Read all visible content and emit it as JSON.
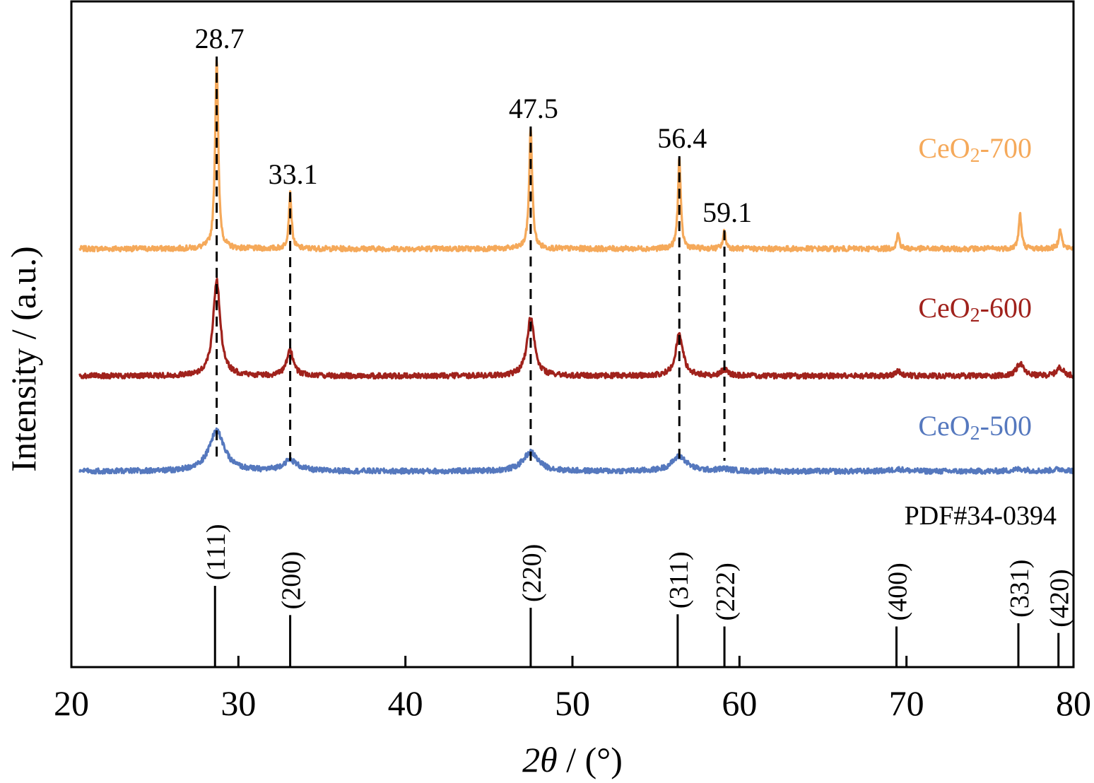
{
  "chart_data": {
    "type": "line",
    "xlabel_prefix": "2",
    "xlabel_symbol": "θ",
    "xlabel_suffix": " / (°)",
    "ylabel": "Intensity / (a.u.)",
    "xlim": [
      20,
      80
    ],
    "x_ticks": [
      20,
      30,
      40,
      50,
      60,
      70,
      80
    ],
    "y_ticks": [],
    "grid": false,
    "series": [
      {
        "name_main": "CeO",
        "name_sub": "2",
        "name_tail": "-700",
        "color": "#F5A95A",
        "baseline": 0.6,
        "peaks": [
          {
            "x": 28.7,
            "height": 0.9,
            "width": 0.11
          },
          {
            "x": 33.1,
            "height": 0.26,
            "width": 0.1
          },
          {
            "x": 47.5,
            "height": 0.57,
            "width": 0.11
          },
          {
            "x": 56.4,
            "height": 0.43,
            "width": 0.1
          },
          {
            "x": 59.1,
            "height": 0.08,
            "width": 0.1
          },
          {
            "x": 69.5,
            "height": 0.07,
            "width": 0.1
          },
          {
            "x": 76.8,
            "height": 0.16,
            "width": 0.1
          },
          {
            "x": 79.2,
            "height": 0.1,
            "width": 0.1
          }
        ]
      },
      {
        "name_main": "CeO",
        "name_sub": "2",
        "name_tail": "-600",
        "color": "#A0221C",
        "baseline": 0.0,
        "peaks": [
          {
            "x": 28.7,
            "height": 0.45,
            "width": 0.26
          },
          {
            "x": 33.1,
            "height": 0.12,
            "width": 0.24
          },
          {
            "x": 47.5,
            "height": 0.28,
            "width": 0.26
          },
          {
            "x": 56.4,
            "height": 0.2,
            "width": 0.26
          },
          {
            "x": 59.1,
            "height": 0.03,
            "width": 0.24
          },
          {
            "x": 69.5,
            "height": 0.02,
            "width": 0.24
          },
          {
            "x": 76.8,
            "height": 0.06,
            "width": 0.24
          },
          {
            "x": 79.2,
            "height": 0.04,
            "width": 0.24
          }
        ]
      },
      {
        "name_main": "CeO",
        "name_sub": "2",
        "name_tail": "-500",
        "color": "#5578BE",
        "baseline": -0.45,
        "peaks": [
          {
            "x": 28.7,
            "height": 0.19,
            "width": 0.55
          },
          {
            "x": 33.1,
            "height": 0.05,
            "width": 0.55
          },
          {
            "x": 47.5,
            "height": 0.09,
            "width": 0.55
          },
          {
            "x": 56.4,
            "height": 0.07,
            "width": 0.55
          },
          {
            "x": 59.1,
            "height": 0.01,
            "width": 0.5
          },
          {
            "x": 69.5,
            "height": 0.01,
            "width": 0.5
          },
          {
            "x": 76.8,
            "height": 0.01,
            "width": 0.5
          },
          {
            "x": 79.2,
            "height": 0.01,
            "width": 0.5
          }
        ]
      }
    ],
    "peak_annotations": [
      {
        "x": 28.7,
        "label": "28.7"
      },
      {
        "x": 33.1,
        "label": "33.1"
      },
      {
        "x": 47.5,
        "label": "47.5"
      },
      {
        "x": 56.4,
        "label": "56.4"
      },
      {
        "x": 59.1,
        "label": "59.1"
      }
    ],
    "reference": {
      "label": "PDF#34-0394",
      "lines": [
        {
          "x": 28.6,
          "hkl": "(111)",
          "intensity": 1.0
        },
        {
          "x": 33.1,
          "hkl": "(200)",
          "intensity": 0.64
        },
        {
          "x": 47.5,
          "hkl": "(220)",
          "intensity": 0.73
        },
        {
          "x": 56.3,
          "hkl": "(311)",
          "intensity": 0.65
        },
        {
          "x": 59.1,
          "hkl": "(222)",
          "intensity": 0.5
        },
        {
          "x": 69.4,
          "hkl": "(400)",
          "intensity": 0.5
        },
        {
          "x": 76.7,
          "hkl": "(331)",
          "intensity": 0.54
        },
        {
          "x": 79.1,
          "hkl": "(420)",
          "intensity": 0.42
        }
      ]
    }
  }
}
